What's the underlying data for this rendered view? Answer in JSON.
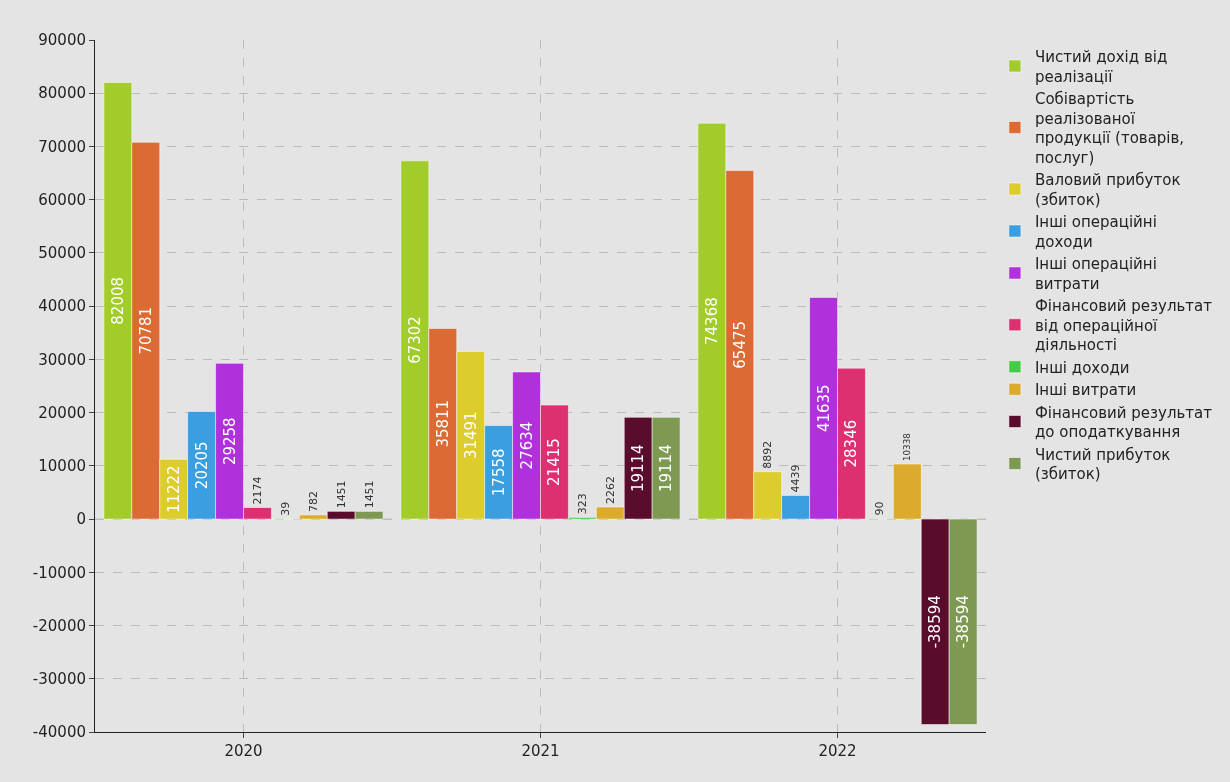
{
  "chart_data": {
    "type": "bar",
    "categories": [
      "2020",
      "2021",
      "2022"
    ],
    "series": [
      {
        "name": "Чистий дохід від реалізації",
        "color": "#a2cc2a",
        "values": [
          82008,
          67302,
          74368
        ]
      },
      {
        "name": "Собівартість реалізованої продукції (товарів, послуг)",
        "color": "#dc6a34",
        "values": [
          70781,
          35811,
          65475
        ]
      },
      {
        "name": "Валовий прибуток (збиток)",
        "color": "#dccc2c",
        "values": [
          11222,
          31491,
          8892
        ]
      },
      {
        "name": "Інші операційні доходи",
        "color": "#3a9ee0",
        "values": [
          20205,
          17558,
          4439
        ]
      },
      {
        "name": "Інші операційні витрати",
        "color": "#b030dc",
        "values": [
          29258,
          27634,
          41635
        ]
      },
      {
        "name": "Фінансовий результат від операційної діяльності",
        "color": "#dc3070",
        "values": [
          2174,
          21415,
          28346
        ]
      },
      {
        "name": "Інші доходи",
        "color": "#44cc44",
        "values": [
          39,
          323,
          90
        ]
      },
      {
        "name": "Інші витрати",
        "color": "#dcaa2c",
        "values": [
          782,
          2262,
          10338
        ]
      },
      {
        "name": "Фінансовий результат до оподаткування",
        "color": "#5a0c2c",
        "values": [
          1451,
          19114,
          -38594
        ]
      },
      {
        "name": "Чистий прибуток (збиток)",
        "color": "#7e9a52",
        "values": [
          1451,
          19114,
          -38594
        ]
      }
    ],
    "ylim": [
      -40000,
      90000
    ],
    "yticks": [
      -40000,
      -30000,
      -20000,
      -10000,
      0,
      10000,
      20000,
      30000,
      40000,
      50000,
      60000,
      70000,
      80000,
      90000
    ],
    "grid": true,
    "legend": "right",
    "data_labels": true
  }
}
